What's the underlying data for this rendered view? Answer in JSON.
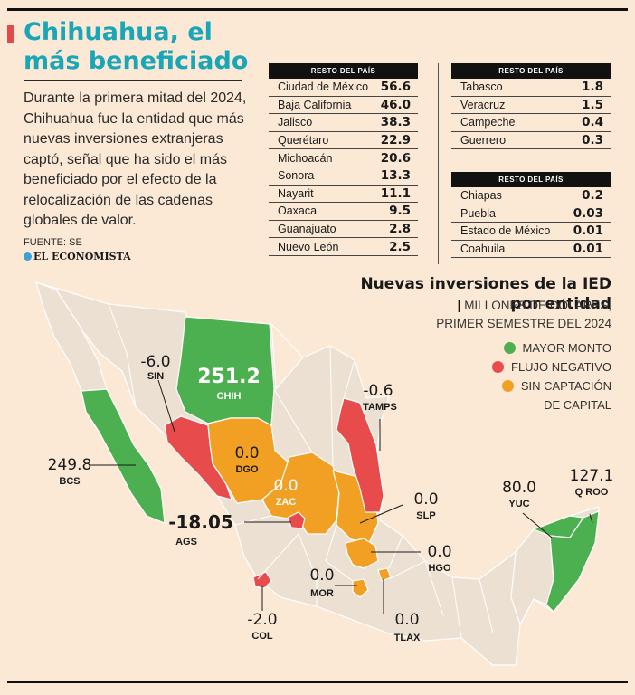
{
  "header": {
    "title": "Chihuahua, el más beneficiado",
    "lede": "Durante la primera mitad del 2024, Chihuahua fue la entidad que más nuevas inversiones extranjeras captó, señal que ha sido el más beneficiado por el efecto de la relocalización de las cadenas globales de valor.",
    "source": "FUENTE: SE",
    "brand": "EL ECONOMISTA"
  },
  "tables": [
    {
      "header": "RESTO DEL PAÍS",
      "rows": [
        {
          "state": "Ciudad de México",
          "value": "56.6"
        },
        {
          "state": "Baja California",
          "value": "46.0"
        },
        {
          "state": "Jalisco",
          "value": "38.3"
        },
        {
          "state": "Querétaro",
          "value": "22.9"
        },
        {
          "state": "Michoacán",
          "value": "20.6"
        },
        {
          "state": "Sonora",
          "value": "13.3"
        },
        {
          "state": "Nayarit",
          "value": "11.1"
        },
        {
          "state": "Oaxaca",
          "value": "9.5"
        },
        {
          "state": "Guanajuato",
          "value": "2.8"
        },
        {
          "state": "Nuevo León",
          "value": "2.5"
        }
      ]
    },
    {
      "header": "RESTO DEL PAÍS",
      "rows": [
        {
          "state": "Tabasco",
          "value": "1.8"
        },
        {
          "state": "Veracruz",
          "value": "1.5"
        },
        {
          "state": "Campeche",
          "value": "0.4"
        },
        {
          "state": "Guerrero",
          "value": "0.3"
        }
      ]
    },
    {
      "header": "RESTO DEL PAÍS",
      "rows": [
        {
          "state": "Chiapas",
          "value": "0.2"
        },
        {
          "state": "Puebla",
          "value": "0.03"
        },
        {
          "state": "Estado de México",
          "value": "0.01"
        },
        {
          "state": "Coahuila",
          "value": "0.01"
        }
      ]
    }
  ],
  "map": {
    "title_line1": "Nuevas inversiones de la IED",
    "title_line2": "por entidad",
    "subtitle_line1": "MILLONES DE DÓLARES,",
    "subtitle_line2": "PRIMER SEMESTRE DEL 2024",
    "separator": "|",
    "legend": [
      {
        "label": "MAYOR MONTO",
        "color": "#4caf50"
      },
      {
        "label": "FLUJO NEGATIVO",
        "color": "#e84b4b"
      },
      {
        "label": "SIN CAPTACIÓN",
        "label2": "DE CAPITAL",
        "color": "#f2a024"
      }
    ],
    "labels": {
      "chih": {
        "value": "251.2",
        "abbr": "CHIH"
      },
      "sin": {
        "value": "-6.0",
        "abbr": "SIN"
      },
      "bcs": {
        "value": "249.8",
        "abbr": "BCS"
      },
      "dgo": {
        "value": "0.0",
        "abbr": "DGO"
      },
      "zac": {
        "value": "0.0",
        "abbr": "ZAC"
      },
      "tamps": {
        "value": "-0.6",
        "abbr": "TAMPS"
      },
      "ags": {
        "value": "-18.05",
        "abbr": "AGS"
      },
      "slp": {
        "value": "0.0",
        "abbr": "SLP"
      },
      "hgo": {
        "value": "0.0",
        "abbr": "HGO"
      },
      "mor": {
        "value": "0.0",
        "abbr": "MOR"
      },
      "tlax": {
        "value": "0.0",
        "abbr": "TLAX"
      },
      "col": {
        "value": "-2.0",
        "abbr": "COL"
      },
      "yuc": {
        "value": "80.0",
        "abbr": "YUC"
      },
      "qroo": {
        "value": "127.1",
        "abbr": "Q ROO"
      }
    },
    "colors": {
      "land": "#ece0d2",
      "border": "#ffffff",
      "green": "#4caf50",
      "red": "#e84b4b",
      "orange": "#f2a024",
      "sea": "#fbe9d6"
    }
  }
}
